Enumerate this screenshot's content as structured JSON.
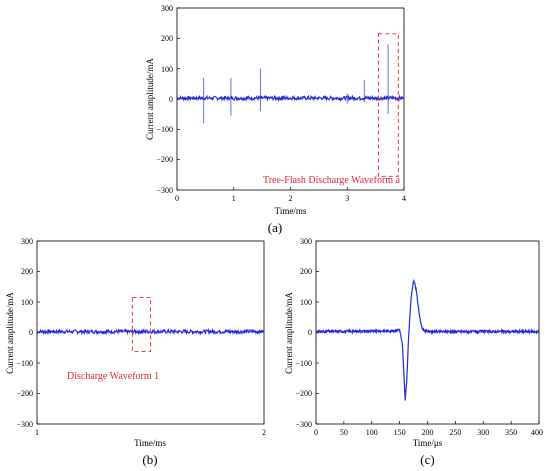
{
  "colors": {
    "signal": "#1f2bd6",
    "annotation": "#e8262b",
    "axis": "#000000"
  },
  "chart_data": [
    {
      "type": "line",
      "panel_label": "(a)",
      "xlabel": "Time/ms",
      "ylabel": "Current amplitude/mA",
      "xlim": [
        0,
        4
      ],
      "ylim": [
        -300,
        300
      ],
      "xticks": [
        "0",
        "1",
        "2",
        "3",
        "4"
      ],
      "yticks": [
        "300",
        "200",
        "100",
        "0",
        "−100",
        "−200",
        "−300"
      ],
      "annotation": "Tree-Flash Discharge Waveform a",
      "baseline": 3,
      "spikes": [
        {
          "x": 0.47,
          "high": 70,
          "low": -80
        },
        {
          "x": 0.95,
          "high": 70,
          "low": -55
        },
        {
          "x": 1.47,
          "high": 100,
          "low": -40
        },
        {
          "x": 3.0,
          "high": 18,
          "low": -15
        },
        {
          "x": 3.3,
          "high": 62,
          "low": -10
        },
        {
          "x": 3.72,
          "high": 180,
          "low": -50
        }
      ],
      "highlight": {
        "x": [
          3.55,
          3.9
        ],
        "y": [
          -255,
          215
        ]
      }
    },
    {
      "type": "line",
      "panel_label": "(b)",
      "xlabel": "Time/ms",
      "ylabel": "Current amplitude/mA",
      "xlim": [
        1,
        2
      ],
      "ylim": [
        -300,
        300
      ],
      "xticks": [
        "1",
        "2"
      ],
      "yticks": [
        "300",
        "200",
        "100",
        "0",
        "−100",
        "−200",
        "−300"
      ],
      "annotation": "Discharge Waveform 1",
      "baseline": 3,
      "highlight": {
        "x": [
          1.42,
          1.5
        ],
        "y": [
          -62,
          115
        ]
      }
    },
    {
      "type": "line",
      "panel_label": "(c)",
      "xlabel": "Time/μs",
      "ylabel": "Current amplitude/mA",
      "xlim": [
        0,
        400
      ],
      "ylim": [
        -300,
        300
      ],
      "xticks": [
        "0",
        "50",
        "100",
        "150",
        "200",
        "250",
        "300",
        "350",
        "400"
      ],
      "yticks": [
        "300",
        "200",
        "100",
        "0",
        "−100",
        "−200",
        "−300"
      ],
      "baseline": 3,
      "x": [
        0,
        140,
        150,
        155,
        158,
        160,
        163,
        166,
        170,
        175,
        180,
        185,
        190,
        195,
        200,
        210,
        400
      ],
      "y": [
        3,
        5,
        10,
        -40,
        -150,
        -225,
        -150,
        -20,
        100,
        175,
        140,
        60,
        15,
        5,
        4,
        3,
        3
      ]
    }
  ]
}
